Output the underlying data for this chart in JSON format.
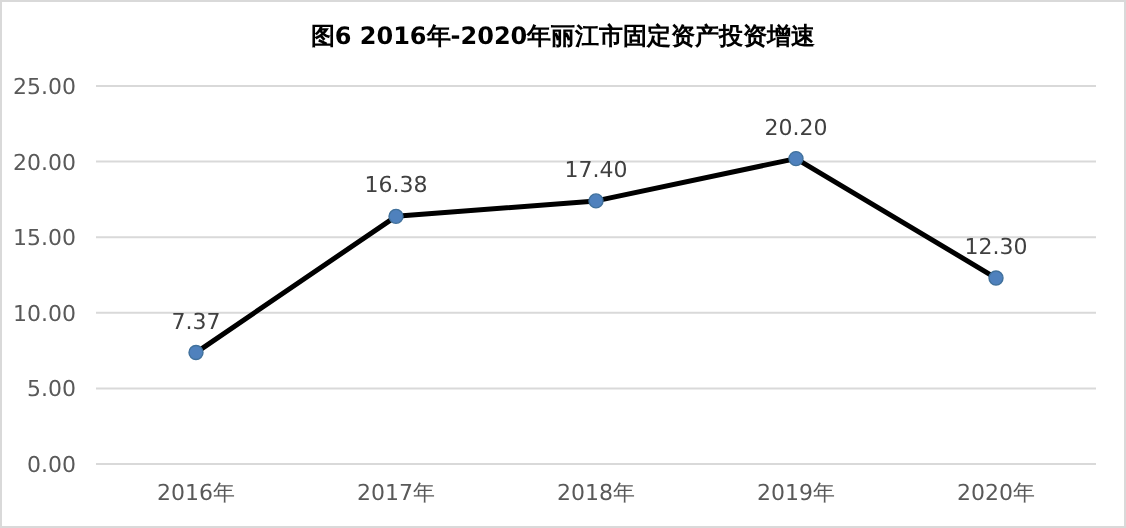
{
  "chart_data": {
    "type": "line",
    "title": "图6   2016年-2020年丽江市固定资产投资增速",
    "categories": [
      "2016年",
      "2017年",
      "2018年",
      "2019年",
      "2020年"
    ],
    "series": [
      {
        "color": "#000000",
        "values": [
          7.37,
          16.38,
          17.4,
          20.2,
          12.3
        ],
        "value_labels": [
          "7.37",
          "16.38",
          "17.40",
          "20.20",
          "12.30"
        ]
      }
    ],
    "ylim": [
      0,
      25
    ],
    "yticks": [
      {
        "value": 0,
        "label": "0.00"
      },
      {
        "value": 5,
        "label": "5.00"
      },
      {
        "value": 10,
        "label": "10.00"
      },
      {
        "value": 15,
        "label": "15.00"
      },
      {
        "value": 20,
        "label": "20.00"
      },
      {
        "value": 25,
        "label": "25.00"
      }
    ],
    "grid": "y",
    "marker": "circle",
    "line_style": "solid"
  }
}
